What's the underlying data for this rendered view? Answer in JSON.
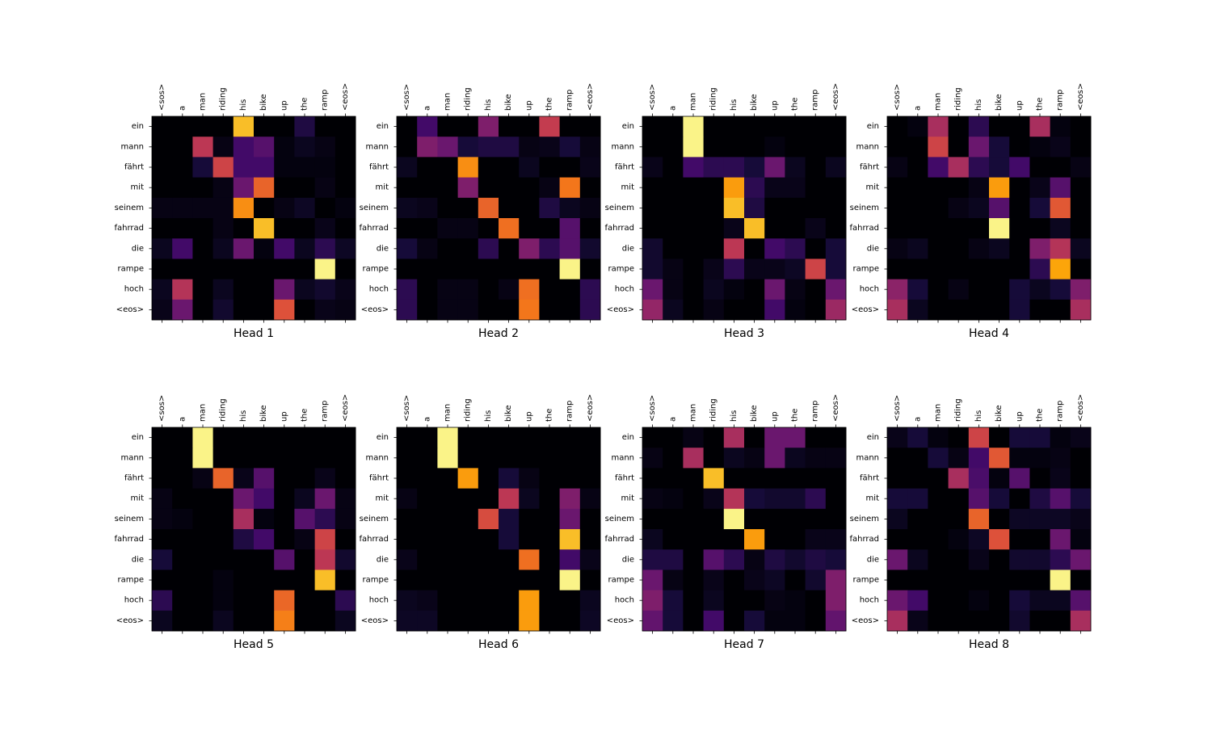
{
  "chart_data": {
    "type": "heatmap",
    "colormap": "inferno",
    "value_range": [
      0,
      1
    ],
    "x_tokens": [
      "<sos>",
      "a",
      "man",
      "riding",
      "his",
      "bike",
      "up",
      "the",
      "ramp",
      "<eos>"
    ],
    "y_tokens": [
      "ein",
      "mann",
      "fährt",
      "mit",
      "seinem",
      "fahrrad",
      "die",
      "rampe",
      "hoch",
      "<eos>"
    ],
    "heads": [
      {
        "title": "Head 1",
        "values": [
          [
            0.0,
            0.0,
            0.0,
            0.0,
            0.85,
            0.0,
            0.0,
            0.12,
            0.0,
            0.0
          ],
          [
            0.0,
            0.0,
            0.5,
            0.03,
            0.2,
            0.25,
            0.02,
            0.05,
            0.03,
            0.0
          ],
          [
            0.0,
            0.0,
            0.1,
            0.55,
            0.2,
            0.2,
            0.02,
            0.02,
            0.02,
            0.0
          ],
          [
            0.0,
            0.0,
            0.0,
            0.03,
            0.3,
            0.65,
            0.0,
            0.0,
            0.03,
            0.0
          ],
          [
            0.03,
            0.03,
            0.03,
            0.03,
            0.75,
            0.0,
            0.03,
            0.06,
            0.0,
            0.02
          ],
          [
            0.0,
            0.0,
            0.0,
            0.03,
            0.0,
            0.85,
            0.0,
            0.0,
            0.04,
            0.0
          ],
          [
            0.05,
            0.2,
            0.0,
            0.05,
            0.3,
            0.02,
            0.2,
            0.05,
            0.15,
            0.06
          ],
          [
            0.0,
            0.0,
            0.0,
            0.0,
            0.0,
            0.0,
            0.0,
            0.0,
            0.97,
            0.0
          ],
          [
            0.05,
            0.48,
            0.0,
            0.05,
            0.0,
            0.0,
            0.3,
            0.05,
            0.08,
            0.04
          ],
          [
            0.04,
            0.3,
            0.0,
            0.08,
            0.0,
            0.0,
            0.6,
            0.0,
            0.04,
            0.03
          ]
        ]
      },
      {
        "title": "Head 2",
        "values": [
          [
            0.0,
            0.2,
            0.0,
            0.0,
            0.35,
            0.0,
            0.0,
            0.52,
            0.0,
            0.0
          ],
          [
            0.0,
            0.35,
            0.3,
            0.1,
            0.12,
            0.12,
            0.03,
            0.04,
            0.1,
            0.03
          ],
          [
            0.05,
            0.0,
            0.0,
            0.75,
            0.0,
            0.0,
            0.05,
            0.0,
            0.0,
            0.04
          ],
          [
            0.0,
            0.0,
            0.0,
            0.35,
            0.0,
            0.0,
            0.0,
            0.03,
            0.7,
            0.0
          ],
          [
            0.05,
            0.04,
            0.0,
            0.0,
            0.65,
            0.0,
            0.0,
            0.12,
            0.05,
            0.03
          ],
          [
            0.0,
            0.0,
            0.03,
            0.03,
            0.0,
            0.68,
            0.0,
            0.0,
            0.25,
            0.0
          ],
          [
            0.1,
            0.03,
            0.0,
            0.0,
            0.15,
            0.0,
            0.35,
            0.15,
            0.25,
            0.08
          ],
          [
            0.0,
            0.0,
            0.0,
            0.0,
            0.0,
            0.0,
            0.0,
            0.0,
            0.97,
            0.0
          ],
          [
            0.15,
            0.0,
            0.03,
            0.03,
            0.0,
            0.03,
            0.68,
            0.0,
            0.0,
            0.15
          ],
          [
            0.15,
            0.0,
            0.03,
            0.03,
            0.0,
            0.0,
            0.7,
            0.0,
            0.0,
            0.15
          ]
        ]
      },
      {
        "title": "Head 3",
        "values": [
          [
            0.0,
            0.0,
            0.97,
            0.0,
            0.0,
            0.0,
            0.0,
            0.0,
            0.0,
            0.0
          ],
          [
            0.0,
            0.0,
            0.97,
            0.0,
            0.0,
            0.0,
            0.02,
            0.0,
            0.0,
            0.0
          ],
          [
            0.04,
            0.0,
            0.2,
            0.15,
            0.15,
            0.1,
            0.3,
            0.05,
            0.0,
            0.05
          ],
          [
            0.0,
            0.0,
            0.0,
            0.0,
            0.78,
            0.15,
            0.04,
            0.04,
            0.0,
            0.0
          ],
          [
            0.0,
            0.0,
            0.0,
            0.0,
            0.85,
            0.12,
            0.0,
            0.0,
            0.0,
            0.0
          ],
          [
            0.0,
            0.0,
            0.0,
            0.0,
            0.04,
            0.85,
            0.0,
            0.0,
            0.04,
            0.0
          ],
          [
            0.08,
            0.0,
            0.0,
            0.0,
            0.5,
            0.0,
            0.2,
            0.15,
            0.0,
            0.1
          ],
          [
            0.08,
            0.03,
            0.0,
            0.04,
            0.15,
            0.04,
            0.04,
            0.06,
            0.55,
            0.1
          ],
          [
            0.3,
            0.03,
            0.0,
            0.05,
            0.02,
            0.0,
            0.3,
            0.03,
            0.0,
            0.3
          ],
          [
            0.4,
            0.05,
            0.0,
            0.03,
            0.0,
            0.0,
            0.2,
            0.02,
            0.0,
            0.42
          ]
        ]
      },
      {
        "title": "Head 4",
        "values": [
          [
            0.0,
            0.02,
            0.45,
            0.0,
            0.15,
            0.0,
            0.0,
            0.45,
            0.02,
            0.0
          ],
          [
            0.0,
            0.0,
            0.55,
            0.0,
            0.3,
            0.1,
            0.0,
            0.02,
            0.04,
            0.0
          ],
          [
            0.03,
            0.0,
            0.2,
            0.45,
            0.15,
            0.1,
            0.2,
            0.0,
            0.0,
            0.03
          ],
          [
            0.0,
            0.0,
            0.0,
            0.0,
            0.03,
            0.78,
            0.0,
            0.04,
            0.25,
            0.0
          ],
          [
            0.0,
            0.0,
            0.0,
            0.03,
            0.05,
            0.25,
            0.0,
            0.1,
            0.62,
            0.0
          ],
          [
            0.0,
            0.0,
            0.0,
            0.0,
            0.0,
            0.97,
            0.0,
            0.0,
            0.05,
            0.0
          ],
          [
            0.03,
            0.05,
            0.0,
            0.0,
            0.03,
            0.05,
            0.0,
            0.35,
            0.48,
            0.05
          ],
          [
            0.0,
            0.0,
            0.0,
            0.0,
            0.0,
            0.0,
            0.0,
            0.15,
            0.8,
            0.0
          ],
          [
            0.38,
            0.1,
            0.0,
            0.03,
            0.0,
            0.0,
            0.1,
            0.05,
            0.1,
            0.35
          ],
          [
            0.45,
            0.05,
            0.0,
            0.0,
            0.0,
            0.0,
            0.1,
            0.0,
            0.0,
            0.45
          ]
        ]
      },
      {
        "title": "Head 5",
        "values": [
          [
            0.0,
            0.0,
            0.97,
            0.0,
            0.0,
            0.0,
            0.0,
            0.0,
            0.0,
            0.0
          ],
          [
            0.0,
            0.0,
            0.97,
            0.0,
            0.0,
            0.0,
            0.0,
            0.0,
            0.0,
            0.0
          ],
          [
            0.0,
            0.0,
            0.03,
            0.65,
            0.04,
            0.25,
            0.0,
            0.0,
            0.04,
            0.0
          ],
          [
            0.03,
            0.0,
            0.0,
            0.0,
            0.3,
            0.2,
            0.0,
            0.05,
            0.3,
            0.03
          ],
          [
            0.03,
            0.02,
            0.0,
            0.0,
            0.45,
            0.02,
            0.0,
            0.25,
            0.15,
            0.03
          ],
          [
            0.0,
            0.0,
            0.0,
            0.0,
            0.12,
            0.2,
            0.0,
            0.03,
            0.55,
            0.0
          ],
          [
            0.1,
            0.0,
            0.0,
            0.0,
            0.0,
            0.0,
            0.25,
            0.0,
            0.5,
            0.08
          ],
          [
            0.0,
            0.0,
            0.0,
            0.02,
            0.0,
            0.0,
            0.0,
            0.0,
            0.85,
            0.0
          ],
          [
            0.15,
            0.0,
            0.0,
            0.02,
            0.0,
            0.0,
            0.66,
            0.0,
            0.0,
            0.15
          ],
          [
            0.05,
            0.0,
            0.0,
            0.05,
            0.0,
            0.0,
            0.72,
            0.0,
            0.0,
            0.05
          ]
        ]
      },
      {
        "title": "Head 6",
        "values": [
          [
            0.0,
            0.0,
            0.97,
            0.0,
            0.0,
            0.0,
            0.0,
            0.0,
            0.0,
            0.0
          ],
          [
            0.0,
            0.0,
            0.97,
            0.0,
            0.0,
            0.0,
            0.0,
            0.0,
            0.0,
            0.0
          ],
          [
            0.0,
            0.0,
            0.0,
            0.78,
            0.0,
            0.1,
            0.03,
            0.0,
            0.0,
            0.0
          ],
          [
            0.03,
            0.0,
            0.0,
            0.0,
            0.0,
            0.5,
            0.05,
            0.0,
            0.35,
            0.03
          ],
          [
            0.0,
            0.0,
            0.0,
            0.0,
            0.58,
            0.1,
            0.0,
            0.0,
            0.3,
            0.0
          ],
          [
            0.0,
            0.0,
            0.0,
            0.0,
            0.0,
            0.1,
            0.0,
            0.0,
            0.85,
            0.0
          ],
          [
            0.04,
            0.0,
            0.0,
            0.0,
            0.0,
            0.0,
            0.68,
            0.0,
            0.2,
            0.04
          ],
          [
            0.0,
            0.0,
            0.0,
            0.0,
            0.0,
            0.0,
            0.0,
            0.0,
            0.97,
            0.0
          ],
          [
            0.05,
            0.04,
            0.0,
            0.0,
            0.0,
            0.0,
            0.78,
            0.0,
            0.0,
            0.05
          ],
          [
            0.06,
            0.06,
            0.0,
            0.0,
            0.0,
            0.0,
            0.78,
            0.0,
            0.0,
            0.06
          ]
        ]
      },
      {
        "title": "Head 7",
        "values": [
          [
            0.0,
            0.0,
            0.03,
            0.0,
            0.45,
            0.0,
            0.3,
            0.3,
            0.0,
            0.0
          ],
          [
            0.03,
            0.0,
            0.45,
            0.0,
            0.05,
            0.03,
            0.3,
            0.05,
            0.03,
            0.03
          ],
          [
            0.0,
            0.0,
            0.0,
            0.85,
            0.0,
            0.0,
            0.0,
            0.0,
            0.0,
            0.0
          ],
          [
            0.03,
            0.02,
            0.0,
            0.04,
            0.48,
            0.1,
            0.08,
            0.08,
            0.15,
            0.0
          ],
          [
            0.0,
            0.0,
            0.0,
            0.0,
            0.97,
            0.0,
            0.0,
            0.0,
            0.0,
            0.0
          ],
          [
            0.05,
            0.0,
            0.0,
            0.0,
            0.0,
            0.78,
            0.0,
            0.0,
            0.04,
            0.04
          ],
          [
            0.12,
            0.12,
            0.0,
            0.25,
            0.15,
            0.03,
            0.12,
            0.08,
            0.12,
            0.1
          ],
          [
            0.3,
            0.03,
            0.0,
            0.04,
            0.0,
            0.04,
            0.06,
            0.0,
            0.08,
            0.35
          ],
          [
            0.35,
            0.1,
            0.0,
            0.05,
            0.0,
            0.0,
            0.03,
            0.02,
            0.0,
            0.35
          ],
          [
            0.28,
            0.1,
            0.0,
            0.2,
            0.0,
            0.1,
            0.02,
            0.02,
            0.0,
            0.28
          ]
        ]
      },
      {
        "title": "Head 8",
        "values": [
          [
            0.04,
            0.1,
            0.02,
            0.0,
            0.55,
            0.0,
            0.1,
            0.1,
            0.02,
            0.04
          ],
          [
            0.0,
            0.0,
            0.1,
            0.03,
            0.2,
            0.62,
            0.02,
            0.02,
            0.03,
            0.0
          ],
          [
            0.0,
            0.0,
            0.0,
            0.45,
            0.22,
            0.02,
            0.25,
            0.0,
            0.04,
            0.0
          ],
          [
            0.1,
            0.1,
            0.0,
            0.0,
            0.25,
            0.1,
            0.0,
            0.12,
            0.25,
            0.1
          ],
          [
            0.05,
            0.0,
            0.0,
            0.0,
            0.65,
            0.0,
            0.06,
            0.06,
            0.06,
            0.04
          ],
          [
            0.0,
            0.0,
            0.0,
            0.02,
            0.06,
            0.6,
            0.0,
            0.0,
            0.3,
            0.02
          ],
          [
            0.3,
            0.05,
            0.0,
            0.0,
            0.04,
            0.0,
            0.08,
            0.08,
            0.15,
            0.3
          ],
          [
            0.0,
            0.0,
            0.0,
            0.0,
            0.0,
            0.0,
            0.0,
            0.0,
            0.97,
            0.0
          ],
          [
            0.3,
            0.2,
            0.0,
            0.0,
            0.02,
            0.0,
            0.1,
            0.05,
            0.05,
            0.25
          ],
          [
            0.45,
            0.04,
            0.0,
            0.0,
            0.0,
            0.0,
            0.08,
            0.0,
            0.0,
            0.45
          ]
        ]
      }
    ]
  }
}
